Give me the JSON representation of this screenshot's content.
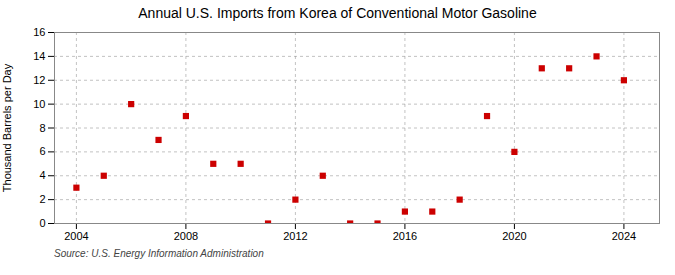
{
  "chart_data": {
    "type": "scatter",
    "title": "Annual U.S. Imports from Korea of Conventional Motor Gasoline",
    "ylabel": "Thousand Barrels per Day",
    "source": "Source: U.S. Energy Information Administration",
    "x": [
      2004,
      2005,
      2006,
      2007,
      2008,
      2009,
      2010,
      2011,
      2012,
      2013,
      2014,
      2015,
      2016,
      2017,
      2018,
      2019,
      2020,
      2021,
      2022,
      2023,
      2024
    ],
    "values": [
      3,
      4,
      10,
      7,
      9,
      5,
      5,
      0,
      2,
      4,
      0,
      0,
      1,
      1,
      2,
      9,
      6,
      13,
      13,
      14,
      12
    ],
    "color": "#cc0000",
    "marker": "square",
    "xlim": [
      2003.2,
      2025.3
    ],
    "xticks": [
      2004,
      2008,
      2012,
      2016,
      2020,
      2024
    ],
    "ylim": [
      0,
      16
    ],
    "yticks": [
      0,
      2,
      4,
      6,
      8,
      10,
      12,
      14,
      16
    ],
    "grid": true
  }
}
